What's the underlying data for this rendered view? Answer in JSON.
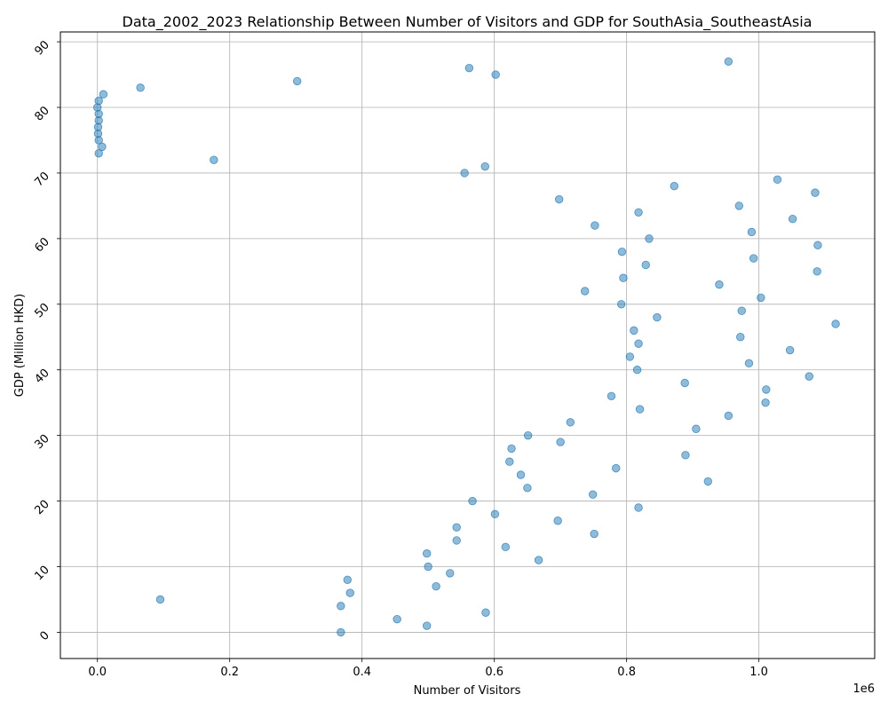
{
  "chart_data": {
    "type": "scatter",
    "title": "Data_2002_2023 Relationship Between Number of Visitors and GDP for SouthAsia_SoutheastAsia",
    "xlabel": "Number of Visitors",
    "ylabel": "GDP (Million HKD)",
    "x_offset_label": "1e6",
    "xlim": [
      -0.056,
      1.175
    ],
    "ylim": [
      -4.0,
      91.5
    ],
    "x_ticks": [
      0.0,
      0.2,
      0.4,
      0.6,
      0.8,
      1.0
    ],
    "x_tick_labels": [
      "0.0",
      "0.2",
      "0.4",
      "0.6",
      "0.8",
      "1.0"
    ],
    "y_ticks": [
      0,
      10,
      20,
      30,
      40,
      50,
      60,
      70,
      80,
      90
    ],
    "y_tick_labels": [
      "0",
      "10",
      "20",
      "30",
      "40",
      "50",
      "60",
      "70",
      "80",
      "90"
    ],
    "grid": true,
    "marker_color": "#1f77b4",
    "marker_alpha": 0.5,
    "points": [
      [
        0.368,
        0
      ],
      [
        0.498,
        1
      ],
      [
        0.453,
        2
      ],
      [
        0.587,
        3
      ],
      [
        0.368,
        4
      ],
      [
        0.095,
        5
      ],
      [
        0.382,
        6
      ],
      [
        0.512,
        7
      ],
      [
        0.378,
        8
      ],
      [
        0.533,
        9
      ],
      [
        0.5,
        10
      ],
      [
        0.667,
        11
      ],
      [
        0.498,
        12
      ],
      [
        0.617,
        13
      ],
      [
        0.543,
        14
      ],
      [
        0.751,
        15
      ],
      [
        0.543,
        16
      ],
      [
        0.696,
        17
      ],
      [
        0.601,
        18
      ],
      [
        0.818,
        19
      ],
      [
        0.567,
        20
      ],
      [
        0.749,
        21
      ],
      [
        0.65,
        22
      ],
      [
        0.923,
        23
      ],
      [
        0.64,
        24
      ],
      [
        0.784,
        25
      ],
      [
        0.623,
        26
      ],
      [
        0.889,
        27
      ],
      [
        0.626,
        28
      ],
      [
        0.7,
        29
      ],
      [
        0.651,
        30
      ],
      [
        0.905,
        31
      ],
      [
        0.715,
        32
      ],
      [
        0.954,
        33
      ],
      [
        0.82,
        34
      ],
      [
        1.01,
        35
      ],
      [
        0.777,
        36
      ],
      [
        1.011,
        37
      ],
      [
        0.888,
        38
      ],
      [
        1.076,
        39
      ],
      [
        0.816,
        40
      ],
      [
        0.985,
        41
      ],
      [
        0.805,
        42
      ],
      [
        1.047,
        43
      ],
      [
        0.818,
        44
      ],
      [
        0.972,
        45
      ],
      [
        0.811,
        46
      ],
      [
        1.116,
        47
      ],
      [
        0.846,
        48
      ],
      [
        0.974,
        49
      ],
      [
        0.792,
        50
      ],
      [
        1.003,
        51
      ],
      [
        0.737,
        52
      ],
      [
        0.94,
        53
      ],
      [
        0.795,
        54
      ],
      [
        1.088,
        55
      ],
      [
        0.829,
        56
      ],
      [
        0.992,
        57
      ],
      [
        0.793,
        58
      ],
      [
        1.089,
        59
      ],
      [
        0.834,
        60
      ],
      [
        0.989,
        61
      ],
      [
        0.752,
        62
      ],
      [
        1.051,
        63
      ],
      [
        0.818,
        64
      ],
      [
        0.97,
        65
      ],
      [
        0.698,
        66
      ],
      [
        1.085,
        67
      ],
      [
        0.872,
        68
      ],
      [
        1.028,
        69
      ],
      [
        0.555,
        70
      ],
      [
        0.586,
        71
      ],
      [
        0.176,
        72
      ],
      [
        0.002,
        73
      ],
      [
        0.007,
        74
      ],
      [
        0.002,
        75
      ],
      [
        0.001,
        76
      ],
      [
        0.001,
        77
      ],
      [
        0.002,
        78
      ],
      [
        0.002,
        79
      ],
      [
        0.0,
        80
      ],
      [
        0.002,
        81
      ],
      [
        0.009,
        82
      ],
      [
        0.065,
        83
      ],
      [
        0.302,
        84
      ],
      [
        0.602,
        85
      ],
      [
        0.562,
        86
      ],
      [
        0.954,
        87
      ]
    ]
  }
}
